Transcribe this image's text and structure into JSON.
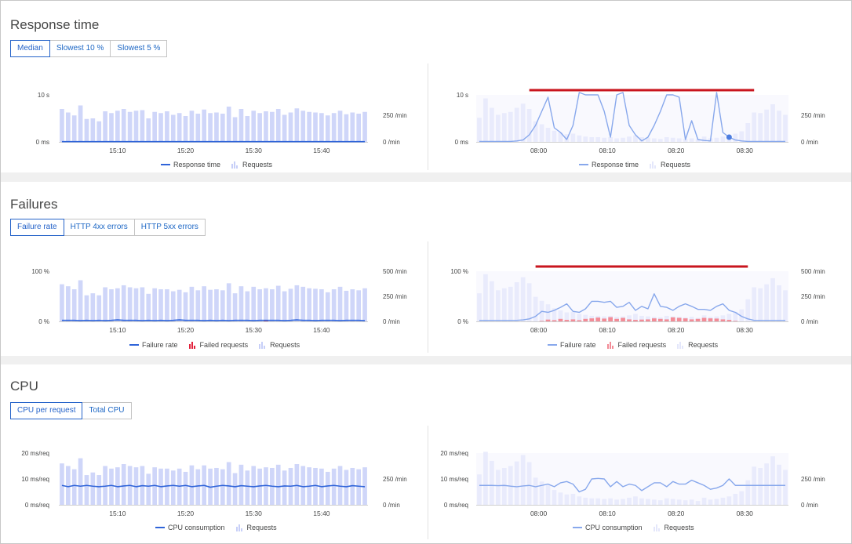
{
  "colors": {
    "line": "#2f64d9",
    "line_light": "#88a8ec",
    "bars": "#cfd6f9",
    "bars_light": "#e9ebfc",
    "failed": "#e2213b",
    "failed_light": "#f38c97",
    "marker": "#c9151e",
    "dot": "#4d7de0"
  },
  "sections": {
    "response": {
      "title": "Response time",
      "tabs": [
        "Median",
        "Slowest 10 %",
        "Slowest 5 %"
      ],
      "active_tab": 0
    },
    "failures": {
      "title": "Failures",
      "tabs": [
        "Failure rate",
        "HTTP 4xx errors",
        "HTTP 5xx errors"
      ],
      "active_tab": 0
    },
    "cpu": {
      "title": "CPU",
      "tabs": [
        "CPU per request",
        "Total CPU"
      ],
      "active_tab": 0
    }
  },
  "legends": {
    "response_left": [
      "Response time",
      "Requests"
    ],
    "response_right": [
      "Response time",
      "Requests"
    ],
    "failures_left": [
      "Failure rate",
      "Failed requests",
      "Requests"
    ],
    "failures_right": [
      "Failure rate",
      "Failed requests",
      "Requests"
    ],
    "cpu_left": [
      "CPU consumption",
      "Requests"
    ],
    "cpu_right": [
      "CPU consumption",
      "Requests"
    ]
  },
  "chart_data": [
    {
      "id": "response_left",
      "type": "bar+line",
      "x_ticks": [
        "15:10",
        "15:20",
        "15:30",
        "15:40"
      ],
      "y_left_ticks": [
        "10 s",
        "0 ms"
      ],
      "y_right_ticks": [
        "250 /min",
        "0 /min"
      ],
      "y_right_max": 400,
      "y_left_max": 10,
      "requests": [
        280,
        250,
        225,
        310,
        195,
        200,
        175,
        260,
        245,
        265,
        280,
        255,
        265,
        270,
        200,
        255,
        245,
        260,
        230,
        245,
        220,
        265,
        240,
        275,
        245,
        250,
        240,
        300,
        210,
        280,
        220,
        265,
        245,
        260,
        255,
        280,
        230,
        250,
        285,
        265,
        255,
        250,
        245,
        225,
        245,
        265,
        235,
        250,
        240,
        255
      ],
      "series": [
        {
          "name": "Response time",
          "values": [
            0.05,
            0.05,
            0.05,
            0.05,
            0.05,
            0.05,
            0.05,
            0.05,
            0.05,
            0.05,
            0.05,
            0.05,
            0.05,
            0.05,
            0.05,
            0.05,
            0.05,
            0.05,
            0.05,
            0.05,
            0.05,
            0.05,
            0.05,
            0.05,
            0.05,
            0.05,
            0.05,
            0.05,
            0.05,
            0.05,
            0.05,
            0.05,
            0.05,
            0.05,
            0.05,
            0.05,
            0.05,
            0.05,
            0.05,
            0.05,
            0.05,
            0.05,
            0.05,
            0.05,
            0.05,
            0.05,
            0.05,
            0.05,
            0.05,
            0.05
          ]
        }
      ]
    },
    {
      "id": "response_right",
      "type": "bar+line",
      "x_ticks": [
        "08:00",
        "08:10",
        "08:20",
        "08:30"
      ],
      "y_left_ticks": [
        "10 s",
        "0 ms"
      ],
      "y_right_ticks": [
        "250 /min",
        "0 /min"
      ],
      "y_right_max": 400,
      "y_left_max": 10,
      "requests": [
        205,
        370,
        290,
        230,
        245,
        255,
        290,
        325,
        280,
        175,
        150,
        120,
        95,
        80,
        65,
        70,
        55,
        45,
        40,
        40,
        35,
        40,
        30,
        35,
        45,
        55,
        40,
        35,
        30,
        25,
        40,
        35,
        30,
        25,
        30,
        20,
        45,
        30,
        35,
        45,
        55,
        70,
        90,
        160,
        250,
        245,
        275,
        320,
        265,
        230
      ],
      "series": [
        {
          "name": "Response time",
          "values": [
            0.1,
            0.1,
            0.1,
            0.1,
            0.1,
            0.1,
            0.2,
            0.4,
            1.5,
            3.5,
            6.5,
            9.5,
            3.0,
            2.0,
            0.5,
            3.5,
            10.5,
            10.0,
            10.0,
            10.0,
            6.5,
            1.0,
            10.0,
            10.5,
            3.5,
            1.5,
            0.2,
            1.0,
            3.5,
            6.5,
            10.0,
            10.0,
            9.5,
            0.5,
            4.5,
            0.5,
            0.3,
            0.2,
            10.5,
            2.0,
            1.0,
            0.4,
            0.2,
            0.1,
            0.1,
            0.1,
            0.1,
            0.1,
            0.1,
            0.1
          ]
        }
      ],
      "highlight_point_index": 40
    },
    {
      "id": "failures_left",
      "type": "bar+line",
      "x_ticks": [
        "15:10",
        "15:20",
        "15:30",
        "15:40"
      ],
      "y_left_ticks": [
        "100 %",
        "0 %"
      ],
      "y_right_ticks": [
        "500 /min",
        "250 /min",
        "0 /min"
      ],
      "y_right_max": 500,
      "y_left_max": 100,
      "requests": [
        370,
        350,
        320,
        410,
        260,
        280,
        260,
        340,
        320,
        330,
        360,
        340,
        330,
        340,
        275,
        330,
        320,
        320,
        300,
        315,
        290,
        345,
        310,
        350,
        315,
        320,
        310,
        380,
        280,
        350,
        300,
        345,
        320,
        330,
        320,
        355,
        300,
        325,
        360,
        345,
        330,
        325,
        320,
        290,
        320,
        345,
        305,
        320,
        310,
        330
      ],
      "failed": [
        0,
        0,
        0,
        0,
        0,
        0,
        0,
        0,
        0,
        0,
        0,
        0,
        0,
        0,
        0,
        0,
        0,
        0,
        0,
        0,
        0,
        0,
        0,
        0,
        0,
        0,
        0,
        0,
        0,
        0,
        0,
        0,
        0,
        3,
        0,
        0,
        0,
        0,
        0,
        0,
        0,
        0,
        0,
        0,
        0,
        0,
        0,
        0,
        0,
        0
      ],
      "series": [
        {
          "name": "Failure rate",
          "values": [
            2,
            2,
            2,
            1.5,
            2,
            1.5,
            2,
            1.5,
            2,
            3,
            2,
            2,
            2,
            1.5,
            2,
            1.5,
            2,
            1.5,
            2,
            3,
            2,
            2,
            2,
            1.5,
            2,
            1.5,
            2,
            1.5,
            2,
            2,
            2,
            1.5,
            2,
            2,
            2,
            2,
            1.5,
            2,
            3,
            2,
            2,
            1.5,
            2,
            2,
            2,
            1.5,
            2,
            2,
            2,
            1.5
          ]
        }
      ]
    },
    {
      "id": "failures_right",
      "type": "bar+line",
      "x_ticks": [
        "08:00",
        "08:10",
        "08:20",
        "08:30"
      ],
      "y_left_ticks": [
        "100 %",
        "0 %"
      ],
      "y_right_ticks": [
        "500 /min",
        "250 /min",
        "0 /min"
      ],
      "y_right_max": 500,
      "y_left_max": 100,
      "requests": [
        280,
        470,
        400,
        310,
        330,
        345,
        390,
        440,
        380,
        245,
        205,
        170,
        130,
        110,
        90,
        95,
        75,
        65,
        55,
        55,
        50,
        55,
        45,
        50,
        60,
        75,
        55,
        50,
        45,
        40,
        55,
        50,
        45,
        40,
        45,
        35,
        60,
        45,
        50,
        60,
        75,
        95,
        120,
        220,
        340,
        330,
        370,
        430,
        360,
        310
      ],
      "failed": [
        0,
        0,
        0,
        0,
        0,
        0,
        0,
        0,
        0,
        0,
        5,
        18,
        12,
        25,
        15,
        20,
        12,
        25,
        30,
        38,
        28,
        42,
        25,
        35,
        20,
        15,
        18,
        20,
        30,
        25,
        20,
        40,
        35,
        30,
        20,
        25,
        35,
        30,
        28,
        20,
        15,
        5,
        0,
        0,
        0,
        0,
        0,
        0,
        0,
        0
      ],
      "series": [
        {
          "name": "Failure rate",
          "values": [
            2,
            2,
            2,
            2,
            2,
            2,
            2,
            3,
            5,
            10,
            20,
            18,
            22,
            28,
            35,
            20,
            18,
            25,
            40,
            40,
            38,
            40,
            28,
            30,
            38,
            22,
            30,
            25,
            55,
            30,
            28,
            22,
            30,
            35,
            30,
            24,
            24,
            22,
            30,
            35,
            22,
            18,
            10,
            5,
            2,
            2,
            2,
            2,
            2,
            2
          ]
        }
      ]
    },
    {
      "id": "cpu_left",
      "type": "bar+line",
      "x_ticks": [
        "15:10",
        "15:20",
        "15:30",
        "15:40"
      ],
      "y_left_ticks": [
        "20 ms/req",
        "10 ms/req",
        "0 ms/req"
      ],
      "y_right_ticks": [
        "250 /min",
        "0 /min"
      ],
      "y_right_max": 400,
      "y_left_max": 20,
      "requests": [
        320,
        300,
        275,
        360,
        230,
        250,
        230,
        300,
        280,
        290,
        315,
        300,
        290,
        300,
        240,
        290,
        280,
        280,
        265,
        280,
        255,
        305,
        275,
        305,
        280,
        285,
        275,
        330,
        245,
        310,
        265,
        300,
        280,
        290,
        285,
        310,
        265,
        285,
        315,
        300,
        290,
        285,
        280,
        255,
        280,
        300,
        270,
        285,
        275,
        290
      ],
      "series": [
        {
          "name": "CPU consumption",
          "values": [
            7.5,
            7.0,
            7.5,
            7.2,
            7.5,
            7.2,
            7.0,
            7.2,
            7.5,
            7.0,
            7.3,
            7.5,
            7.0,
            7.4,
            7.2,
            7.5,
            7.0,
            7.3,
            7.5,
            7.2,
            7.5,
            7.0,
            7.3,
            7.5,
            6.8,
            7.2,
            7.5,
            7.3,
            7.0,
            7.4,
            7.2,
            7.0,
            7.3,
            7.5,
            7.2,
            7.0,
            7.3,
            7.2,
            7.5,
            7.0,
            7.2,
            7.5,
            7.0,
            7.3,
            7.5,
            7.2,
            7.0,
            7.4,
            7.2,
            7.0
          ]
        }
      ]
    },
    {
      "id": "cpu_right",
      "type": "bar+line",
      "x_ticks": [
        "08:00",
        "08:10",
        "08:20",
        "08:30"
      ],
      "y_left_ticks": [
        "20 ms/req",
        "10 ms/req",
        "0 ms/req"
      ],
      "y_right_ticks": [
        "250 /min",
        "0 /min"
      ],
      "y_right_max": 400,
      "y_left_max": 20,
      "requests": [
        235,
        410,
        340,
        270,
        285,
        300,
        335,
        385,
        330,
        210,
        180,
        150,
        115,
        95,
        80,
        85,
        65,
        55,
        50,
        50,
        45,
        50,
        40,
        45,
        55,
        65,
        50,
        45,
        40,
        35,
        50,
        45,
        40,
        35,
        40,
        30,
        55,
        40,
        45,
        55,
        65,
        85,
        105,
        190,
        295,
        285,
        320,
        375,
        310,
        270
      ],
      "series": [
        {
          "name": "CPU consumption",
          "values": [
            7.5,
            7.5,
            7.5,
            7.4,
            7.5,
            7.2,
            7.0,
            7.3,
            7.5,
            7.0,
            7.5,
            8.0,
            7.0,
            8.5,
            9.0,
            8.0,
            5.0,
            6.0,
            10.0,
            10.2,
            10.0,
            7.0,
            9.0,
            7.0,
            8.0,
            7.5,
            5.5,
            7.0,
            8.5,
            8.5,
            7.0,
            9.0,
            8.0,
            8.0,
            9.5,
            8.5,
            7.5,
            6.0,
            6.5,
            7.5,
            10.0,
            7.5,
            7.5,
            7.5,
            7.5,
            7.5,
            7.5,
            7.5,
            7.5,
            7.5
          ]
        }
      ]
    }
  ]
}
